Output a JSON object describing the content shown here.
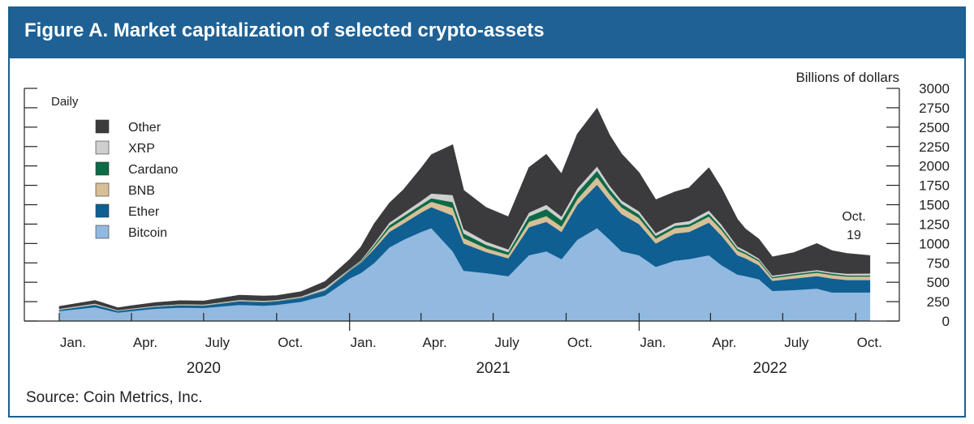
{
  "figure": {
    "title": "Figure A. Market capitalization of selected crypto-assets",
    "source": "Source: Coin Metrics, Inc."
  },
  "chart_data": {
    "type": "area",
    "stacked": true,
    "frequency_label": "Daily",
    "ylabel": "Billions of dollars",
    "ylim": [
      0,
      3000
    ],
    "yticks": [
      0,
      250,
      500,
      750,
      1000,
      1250,
      1500,
      1750,
      2000,
      2250,
      2500,
      2750,
      3000
    ],
    "month_ticks": [
      "Jan.",
      "Apr.",
      "July",
      "Oct.",
      "Jan.",
      "Apr.",
      "July",
      "Oct.",
      "Jan.",
      "Apr.",
      "July",
      "Oct."
    ],
    "year_labels": [
      "2020",
      "2021",
      "2022"
    ],
    "annotation": {
      "line1": "Oct.",
      "line2": "19"
    },
    "grid": false,
    "legend_position": "top-left",
    "x": [
      "2020-01-01",
      "2020-02-15",
      "2020-03-15",
      "2020-04-01",
      "2020-05-01",
      "2020-06-01",
      "2020-07-01",
      "2020-08-15",
      "2020-09-15",
      "2020-10-01",
      "2020-11-01",
      "2020-12-01",
      "2021-01-01",
      "2021-01-15",
      "2021-02-01",
      "2021-02-20",
      "2021-03-10",
      "2021-04-01",
      "2021-04-14",
      "2021-05-11",
      "2021-05-25",
      "2021-06-22",
      "2021-07-20",
      "2021-08-15",
      "2021-09-06",
      "2021-09-25",
      "2021-10-15",
      "2021-11-09",
      "2021-11-25",
      "2021-12-10",
      "2022-01-01",
      "2022-01-22",
      "2022-02-15",
      "2022-03-05",
      "2022-03-30",
      "2022-04-15",
      "2022-05-05",
      "2022-05-15",
      "2022-06-01",
      "2022-06-18",
      "2022-07-15",
      "2022-08-13",
      "2022-09-01",
      "2022-09-20",
      "2022-10-19"
    ],
    "series": [
      {
        "name": "Bitcoin",
        "color": "#92b9e0",
        "values": [
          130,
          180,
          110,
          130,
          160,
          175,
          170,
          210,
          200,
          210,
          250,
          330,
          550,
          620,
          750,
          950,
          1050,
          1150,
          1200,
          900,
          650,
          620,
          580,
          850,
          900,
          800,
          1050,
          1200,
          1050,
          900,
          850,
          700,
          780,
          800,
          850,
          720,
          600,
          580,
          540,
          390,
          400,
          420,
          370,
          370,
          370
        ]
      },
      {
        "name": "Ether",
        "color": "#0f5f93",
        "values": [
          15,
          30,
          20,
          20,
          25,
          30,
          30,
          45,
          45,
          45,
          50,
          65,
          100,
          130,
          180,
          200,
          210,
          250,
          270,
          460,
          350,
          270,
          230,
          360,
          380,
          350,
          450,
          560,
          500,
          480,
          400,
          300,
          350,
          350,
          420,
          380,
          250,
          230,
          180,
          130,
          150,
          160,
          180,
          160,
          160
        ]
      },
      {
        "name": "BNB",
        "color": "#d7bf97",
        "values": [
          3,
          4,
          3,
          3,
          3,
          3,
          3,
          4,
          4,
          4,
          4,
          5,
          6,
          8,
          30,
          50,
          55,
          60,
          70,
          100,
          70,
          50,
          45,
          70,
          75,
          70,
          75,
          100,
          90,
          85,
          80,
          65,
          70,
          70,
          80,
          75,
          60,
          55,
          50,
          35,
          40,
          45,
          45,
          45,
          45
        ]
      },
      {
        "name": "Cardano",
        "color": "#0d6a47",
        "values": [
          1,
          1,
          1,
          1,
          1,
          1,
          2,
          3,
          3,
          3,
          3,
          5,
          5,
          8,
          20,
          35,
          40,
          40,
          45,
          75,
          60,
          45,
          35,
          70,
          90,
          80,
          80,
          80,
          60,
          50,
          45,
          35,
          30,
          30,
          35,
          30,
          25,
          20,
          18,
          15,
          16,
          17,
          16,
          15,
          15
        ]
      },
      {
        "name": "XRP",
        "color": "#cfcfcf",
        "values": [
          10,
          12,
          8,
          9,
          9,
          9,
          9,
          12,
          11,
          11,
          12,
          25,
          12,
          15,
          25,
          35,
          40,
          50,
          60,
          90,
          55,
          40,
          35,
          50,
          55,
          50,
          55,
          55,
          45,
          40,
          40,
          35,
          35,
          40,
          42,
          38,
          28,
          24,
          20,
          18,
          17,
          18,
          18,
          22,
          25
        ]
      },
      {
        "name": "Other",
        "color": "#3b3b3d",
        "values": [
          30,
          40,
          30,
          35,
          40,
          45,
          45,
          60,
          60,
          55,
          60,
          80,
          120,
          170,
          250,
          250,
          300,
          420,
          500,
          650,
          500,
          440,
          420,
          580,
          650,
          550,
          700,
          750,
          650,
          600,
          500,
          430,
          400,
          430,
          550,
          470,
          350,
          280,
          250,
          240,
          260,
          340,
          280,
          260,
          230
        ]
      }
    ]
  }
}
